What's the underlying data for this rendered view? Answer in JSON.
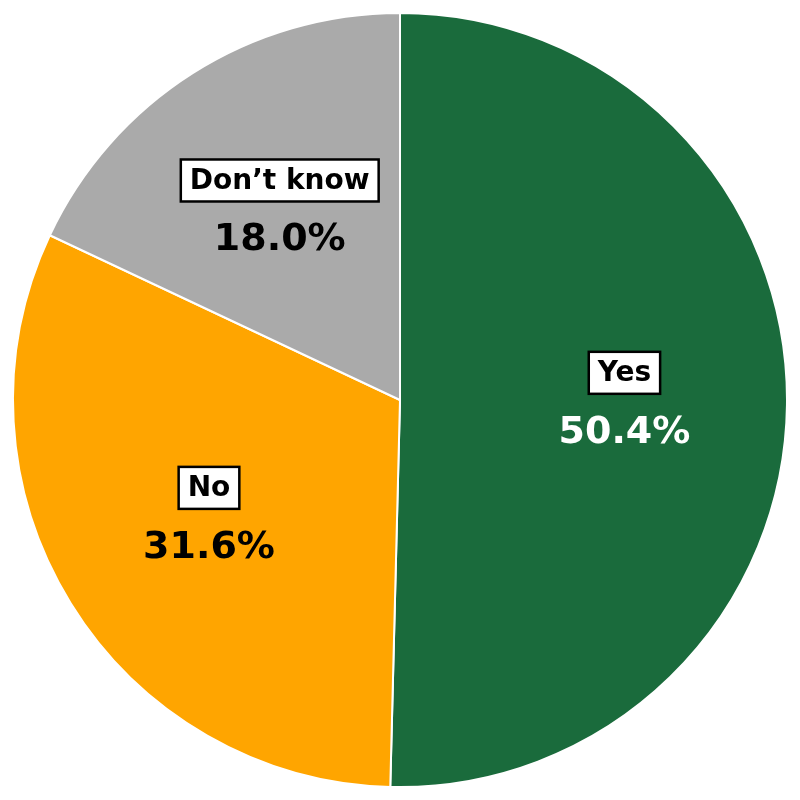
{
  "chart_data": {
    "type": "pie",
    "categories": [
      "Yes",
      "No",
      "Don’t know"
    ],
    "values": [
      50.4,
      31.6,
      18.0
    ],
    "value_labels": [
      "50.4%",
      "31.6%",
      "18.0%"
    ],
    "colors": [
      "#1a6b3c",
      "#ffa500",
      "#aaaaaa"
    ],
    "data_labels": true
  }
}
